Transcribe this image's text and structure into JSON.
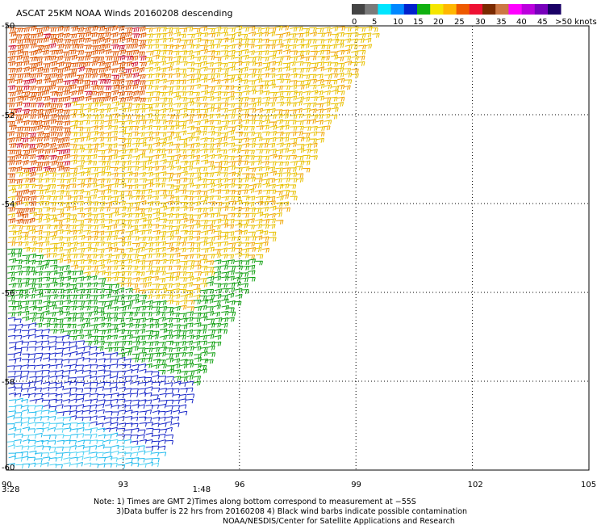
{
  "title": "ASCAT 25KM NOAA Winds 20160208 descending",
  "legend": {
    "labels": [
      "0",
      "5",
      "10",
      "15",
      "20",
      "25",
      "30",
      "35",
      "40",
      "45",
      ">50 knots"
    ],
    "colors": [
      "#444444",
      "#7a7a7a",
      "#00e5ff",
      "#0088ff",
      "#0022cc",
      "#10b010",
      "#f5e600",
      "#ffb700",
      "#ee5a00",
      "#ee1133",
      "#7a2a00",
      "#cc7744",
      "#ff00ff",
      "#bb00dd",
      "#7700bb",
      "#1a0066"
    ]
  },
  "map": {
    "lon_ticks": [
      "90",
      "93",
      "96",
      "99",
      "102",
      "105"
    ],
    "lat_ticks": [
      "-50",
      "-52",
      "-54",
      "-56",
      "-58",
      "-60"
    ],
    "time_labels": [
      {
        "lon": 90,
        "text": "3:28",
        "color": "#7700aa"
      },
      {
        "lon": 95,
        "text": "1:48",
        "color": "#7700aa"
      }
    ]
  },
  "swath": {
    "edge_lon_at_top": 99.6,
    "edge_lon_at_bottom": 93.8,
    "zones": [
      {
        "name": "strong-north",
        "color_hex": "#dd5500",
        "knots": 30
      },
      {
        "name": "yellow-core",
        "color_hex": "#e8c000",
        "knots": 25
      },
      {
        "name": "green-band",
        "color_hex": "#12a012",
        "knots": 18
      },
      {
        "name": "blue-band",
        "color_hex": "#1a28c8",
        "knots": 12
      },
      {
        "name": "cyan-south",
        "color_hex": "#22bbee",
        "knots": 6
      }
    ]
  },
  "notes": [
    "Note: 1) Times are GMT 2)Times along bottom correspond to measurement at −55S",
    "3)Data buffer is 22 hrs from 20160208 4) Black wind barbs indicate possible contamination",
    "NOAA/NESDIS/Center for Satellite Applications and Research"
  ]
}
